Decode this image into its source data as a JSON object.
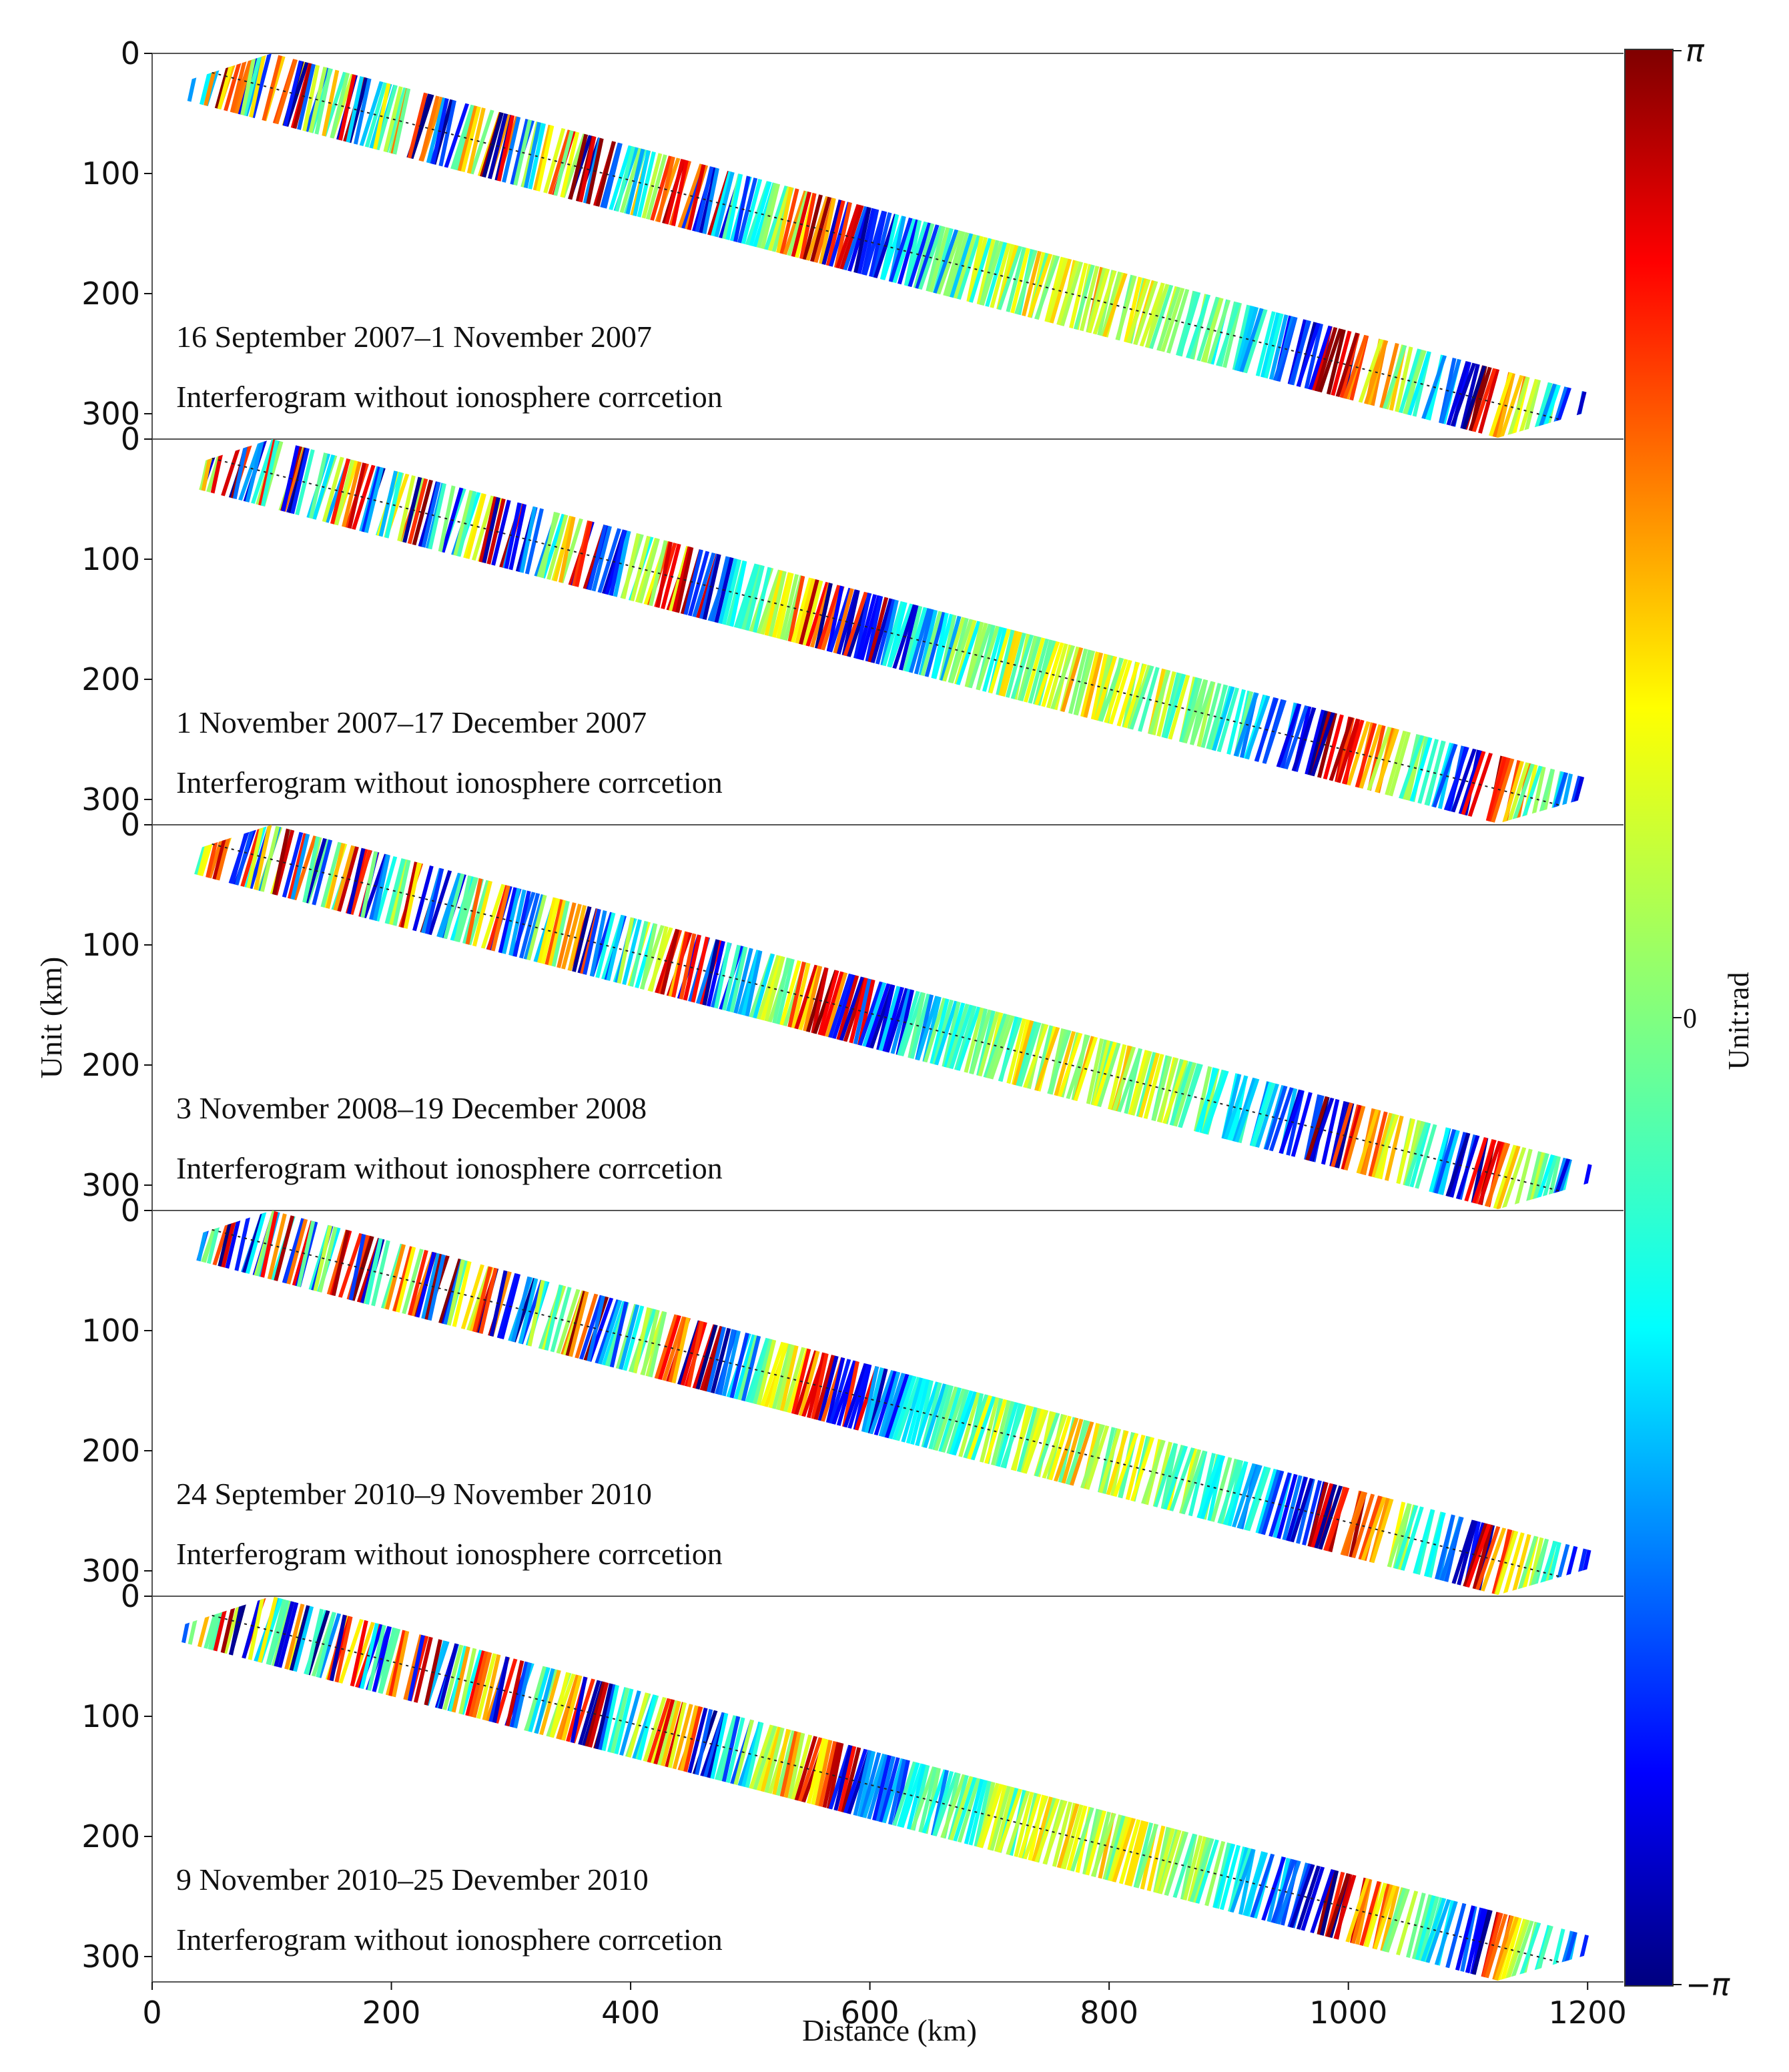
{
  "chart_data": {
    "type": "heatmap",
    "description_axes": {
      "xlabel": "Distance (km)",
      "ylabel": "Unit (km)"
    },
    "xlim": [
      0,
      1230
    ],
    "ylim": [
      0,
      320
    ],
    "xticks": [
      0,
      200,
      400,
      600,
      800,
      1000,
      1200
    ],
    "yticks": [
      0,
      100,
      200,
      300
    ],
    "colorbar": {
      "label": "Unit:rad",
      "ticks": [
        "π",
        "0",
        "−π"
      ],
      "range": [
        -3.1416,
        3.1416
      ],
      "colors": [
        "#00007f",
        "#0000ff",
        "#0080ff",
        "#00ffff",
        "#80ff80",
        "#ffff00",
        "#ff8000",
        "#ff0000",
        "#7f0000"
      ]
    },
    "swath": {
      "tl": [
        100,
        0
      ],
      "tr": [
        1230,
        290
      ],
      "br": [
        1125,
        320
      ],
      "bl": [
        0,
        32
      ]
    },
    "panels": [
      {
        "date_range": "16 September 2007–1 November 2007",
        "caption": "Interferogram without ionosphere corrcetion",
        "seed": 11
      },
      {
        "date_range": "1 November 2007–17 December 2007",
        "caption": "Interferogram without ionosphere corrcetion",
        "seed": 23
      },
      {
        "date_range": "3 November 2008–19 December 2008",
        "caption": "Interferogram without ionosphere corrcetion",
        "seed": 37
      },
      {
        "date_range": "24 September 2010–9 November 2010",
        "caption": "Interferogram without ionosphere corrcetion",
        "seed": 41
      },
      {
        "date_range": "9 November 2010–25 Devember 2010",
        "caption": "Interferogram without ionosphere corrcetion",
        "seed": 53
      }
    ]
  }
}
